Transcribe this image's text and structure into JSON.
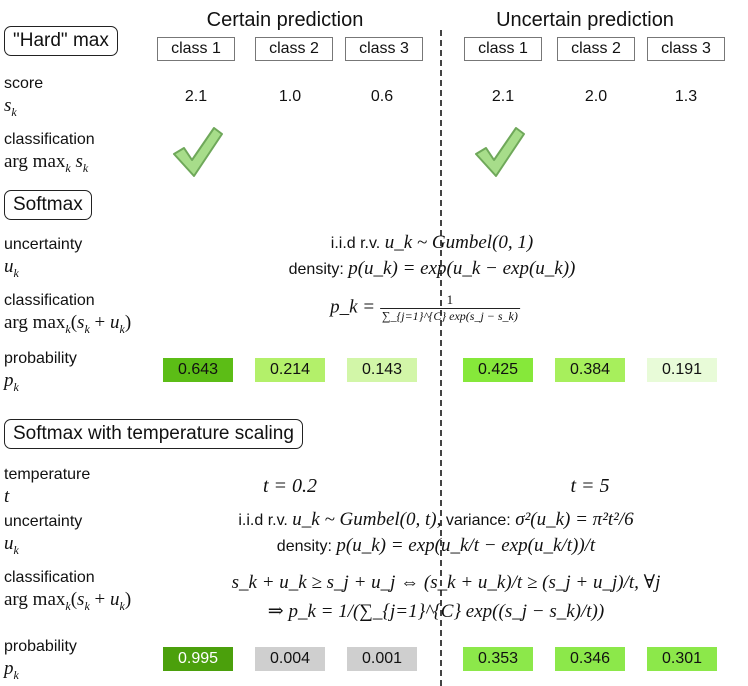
{
  "hard": {
    "title": "\"Hard\" max",
    "left_col_title": "Certain prediction",
    "right_col_title": "Uncertain prediction",
    "classes": [
      "class 1",
      "class 2",
      "class 3"
    ],
    "score_label": "score",
    "score_symbol": "s_k",
    "left_scores": [
      "2.1",
      "1.0",
      "0.6"
    ],
    "right_scores": [
      "2.1",
      "2.0",
      "1.3"
    ],
    "classification_label": "classification",
    "classification_symbol": "arg max_k s_k"
  },
  "softmax": {
    "title": "Softmax",
    "uncertainty_label": "uncertainty",
    "uncertainty_symbol": "u_k",
    "iid_prefix": "i.i.d r.v.",
    "iid_formula": "u_k ~ Gumbel(0, 1)",
    "density_prefix": "density:",
    "density_formula": "p(u_k) = exp(u_k − exp(u_k))",
    "classification_label": "classification",
    "classification_symbol": "arg max_k (s_k + u_k)",
    "pk_formula_lhs": "p_k =",
    "pk_formula_num": "1",
    "pk_formula_den": "∑_{j=1}^{C} exp(s_j − s_k)",
    "probability_label": "probability",
    "probability_symbol": "p_k",
    "left_probs": [
      "0.643",
      "0.214",
      "0.143"
    ],
    "right_probs": [
      "0.425",
      "0.384",
      "0.191"
    ]
  },
  "temp": {
    "title": "Softmax with temperature scaling",
    "temperature_label": "temperature",
    "temperature_symbol": "t",
    "left_t": "t = 0.2",
    "right_t": "t = 5",
    "uncertainty_label": "uncertainty",
    "uncertainty_symbol": "u_k",
    "iid_prefix": "i.i.d r.v.",
    "iid_formula": "u_k ~ Gumbel(0, t),",
    "variance_prefix": "variance:",
    "variance_formula": "σ²(u_k) = π²t²/6",
    "density_prefix": "density:",
    "density_formula": "p(u_k) = exp(u_k/t − exp(u_k/t))/t",
    "classification_label": "classification",
    "classification_symbol": "arg max_k (s_k + u_k)",
    "cond_formula": "s_k + u_k ≥ s_j + u_j ⇔ (s_k + u_k)/t ≥ (s_j + u_j)/t, ∀j",
    "pk_formula": "⇒ p_k = 1/(∑_{j=1}^{C} exp((s_j − s_k)/t))",
    "probability_label": "probability",
    "probability_symbol": "p_k",
    "left_probs": [
      "0.995",
      "0.004",
      "0.001"
    ],
    "right_probs": [
      "0.353",
      "0.346",
      "0.301"
    ]
  },
  "colors": {
    "prob_0643": "#5cbd16",
    "prob_0214": "#b3f06a",
    "prob_0143": "#d2f6a8",
    "prob_0425": "#86e83a",
    "prob_0384": "#a7ef5c",
    "prob_0191": "#e8fbd8",
    "prob_0995": "#4ba00c",
    "prob_gray": "#cfcfcf",
    "prob_0353": "#8ce84a",
    "prob_0346": "#8ce84a",
    "prob_0301": "#8ce84a",
    "check_fill": "#a7dd8a",
    "check_stroke": "#6fa85a"
  },
  "icons": {
    "check": "check-mark-icon"
  }
}
